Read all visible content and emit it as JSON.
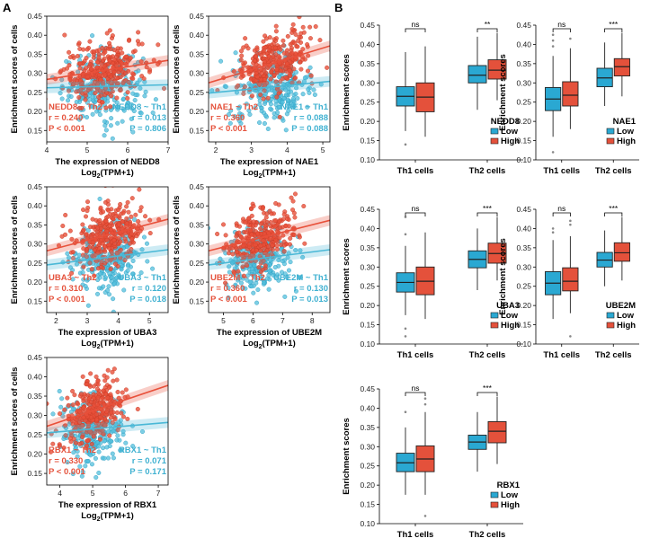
{
  "colors": {
    "th2": "#e8503a",
    "th1": "#4ab8d6",
    "th2_dot": "#e8503a",
    "th1_dot": "#52bfdc",
    "low_box": "#2aa8d2",
    "high_box": "#e4513b",
    "th2_text": "#e5533d",
    "th1_text": "#3fb1d1"
  },
  "panel_labels": {
    "a": "A",
    "b": "B"
  },
  "chart_data": {
    "scatter": [
      {
        "type": "scatter",
        "gene": "NEDD8",
        "xlabel": "The expression of NEDD8",
        "xlabel2_main": "Log",
        "xlabel2_sub": "2",
        "xlabel2_rest": "(TPM+1)",
        "ylabel": "Enrichment scores of cells",
        "xlim": [
          4,
          7
        ],
        "xticks": [
          4,
          5,
          6,
          7
        ],
        "ylim": [
          0.12,
          0.45
        ],
        "yticks": [
          0.15,
          0.2,
          0.25,
          0.3,
          0.35,
          0.4,
          0.45
        ],
        "x_mean": 5.4,
        "x_sd": 0.5,
        "th2_line": [
          0.284,
          0.334
        ],
        "th1_line": [
          0.262,
          0.27
        ],
        "th2_label": "NEDD8 ~ Th2",
        "th2_r": "r = 0.240",
        "th2_p": "P < 0.001",
        "th1_label": "NEDD8 ~ Th1",
        "th1_r": "r = 0.013",
        "th1_p": "P = 0.806"
      },
      {
        "type": "scatter",
        "gene": "NAE1",
        "xlabel": "The expression of NAE1",
        "xlabel2_main": "Log",
        "xlabel2_sub": "2",
        "xlabel2_rest": "(TPM+1)",
        "ylabel": "Enrichment scores of cells",
        "xlim": [
          1.8,
          5.2
        ],
        "xticks": [
          2,
          3,
          4,
          5
        ],
        "ylim": [
          0.12,
          0.45
        ],
        "yticks": [
          0.15,
          0.2,
          0.25,
          0.3,
          0.35,
          0.4,
          0.45
        ],
        "x_mean": 3.6,
        "x_sd": 0.55,
        "th2_line": [
          0.275,
          0.372
        ],
        "th1_line": [
          0.248,
          0.279
        ],
        "th2_label": "NAE1 ~ Th2",
        "th2_r": "r = 0.360",
        "th2_p": "P < 0.001",
        "th1_label": "NAE1 ~ Th1",
        "th1_r": "r = 0.088",
        "th1_p": "P = 0.088"
      },
      {
        "type": "scatter",
        "gene": "UBA3",
        "xlabel": "The expression of UBA3",
        "xlabel2_main": "Log",
        "xlabel2_sub": "2",
        "xlabel2_rest": "(TPM+1)",
        "ylabel": "Enrichment scores of cells",
        "xlim": [
          1.7,
          5.6
        ],
        "xticks": [
          2,
          3,
          4,
          5
        ],
        "ylim": [
          0.12,
          0.45
        ],
        "yticks": [
          0.15,
          0.2,
          0.25,
          0.3,
          0.35,
          0.4,
          0.45
        ],
        "x_mean": 3.7,
        "x_sd": 0.55,
        "th2_line": [
          0.282,
          0.365
        ],
        "th1_line": [
          0.245,
          0.285
        ],
        "th2_label": "UBA3 ~ Th2",
        "th2_r": "r = 0.310",
        "th2_p": "P < 0.001",
        "th1_label": "UBA3 ~ Th1",
        "th1_r": "r = 0.120",
        "th1_p": "P = 0.018"
      },
      {
        "type": "scatter",
        "gene": "UBE2M",
        "xlabel": "The expression of UBE2M",
        "xlabel2_main": "Log",
        "xlabel2_sub": "2",
        "xlabel2_rest": "(TPM+1)",
        "ylabel": "Enrichment scores of cells",
        "xlim": [
          4.5,
          8.6
        ],
        "xticks": [
          5,
          6,
          7,
          8
        ],
        "ylim": [
          0.12,
          0.45
        ],
        "yticks": [
          0.15,
          0.2,
          0.25,
          0.3,
          0.35,
          0.4,
          0.45
        ],
        "x_mean": 6.2,
        "x_sd": 0.6,
        "th2_line": [
          0.282,
          0.362
        ],
        "th1_line": [
          0.245,
          0.285
        ],
        "th2_label": "UBE2M ~ Th2",
        "th2_r": "r = 0.360",
        "th2_p": "P < 0.001",
        "th1_label": "UBE2M ~ Th1",
        "th1_r": "r = 0.130",
        "th1_p": "P = 0.013"
      },
      {
        "type": "scatter",
        "gene": "RBX1",
        "xlabel": "The expression of RBX1",
        "xlabel2_main": "Log",
        "xlabel2_sub": "2",
        "xlabel2_rest": "(TPM+1)",
        "ylabel": "Enrichment scores of cells",
        "xlim": [
          3.6,
          7.3
        ],
        "xticks": [
          4,
          5,
          6,
          7
        ],
        "ylim": [
          0.12,
          0.45
        ],
        "yticks": [
          0.15,
          0.2,
          0.25,
          0.3,
          0.35,
          0.4,
          0.45
        ],
        "x_mean": 5.0,
        "x_sd": 0.45,
        "th2_line": [
          0.272,
          0.378
        ],
        "th1_line": [
          0.255,
          0.282
        ],
        "th2_label": "RBX1 ~ Th2",
        "th2_r": "r = 0.330",
        "th2_p": "P < 0.001",
        "th1_label": "RBX1 ~ Th1",
        "th1_r": "r = 0.071",
        "th1_p": "P = 0.171"
      }
    ],
    "boxplots": [
      {
        "type": "box",
        "gene": "NEDD8",
        "ylabel": "Enrichment scores",
        "categories": [
          "Th1 cells",
          "Th2 cells"
        ],
        "ylim": [
          0.1,
          0.45
        ],
        "yticks": [
          0.1,
          0.15,
          0.2,
          0.25,
          0.3,
          0.35,
          0.4,
          0.45
        ],
        "legend": [
          "Low",
          "High"
        ],
        "sig": [
          "ns",
          "**"
        ],
        "low": [
          {
            "min": 0.175,
            "q1": 0.24,
            "med": 0.265,
            "q3": 0.29,
            "max": 0.38,
            "out": [
              0.14
            ]
          },
          {
            "min": 0.23,
            "q1": 0.3,
            "med": 0.32,
            "q3": 0.345,
            "max": 0.42,
            "out": []
          }
        ],
        "high": [
          {
            "min": 0.16,
            "q1": 0.225,
            "med": 0.263,
            "q3": 0.3,
            "max": 0.395,
            "out": []
          },
          {
            "min": 0.255,
            "q1": 0.31,
            "med": 0.333,
            "q3": 0.36,
            "max": 0.43,
            "out": []
          }
        ]
      },
      {
        "type": "box",
        "gene": "NAE1",
        "ylabel": "Enrichment scores",
        "categories": [
          "Th1 cells",
          "Th2 cells"
        ],
        "ylim": [
          0.1,
          0.45
        ],
        "yticks": [
          0.1,
          0.15,
          0.2,
          0.25,
          0.3,
          0.35,
          0.4,
          0.45
        ],
        "legend": [
          "Low",
          "High"
        ],
        "sig": [
          "ns",
          "***"
        ],
        "low": [
          {
            "min": 0.16,
            "q1": 0.228,
            "med": 0.258,
            "q3": 0.288,
            "max": 0.37,
            "out": [
              0.12,
              0.395,
              0.41,
              0.425
            ]
          },
          {
            "min": 0.24,
            "q1": 0.29,
            "med": 0.313,
            "q3": 0.338,
            "max": 0.405,
            "out": []
          }
        ],
        "high": [
          {
            "min": 0.18,
            "q1": 0.24,
            "med": 0.268,
            "q3": 0.303,
            "max": 0.39,
            "out": [
              0.415
            ]
          },
          {
            "min": 0.265,
            "q1": 0.318,
            "med": 0.342,
            "q3": 0.363,
            "max": 0.43,
            "out": []
          }
        ]
      },
      {
        "type": "box",
        "gene": "UBA3",
        "ylabel": "Enrichment scores",
        "categories": [
          "Th1 cells",
          "Th2 cells"
        ],
        "ylim": [
          0.1,
          0.45
        ],
        "yticks": [
          0.1,
          0.15,
          0.2,
          0.25,
          0.3,
          0.35,
          0.4,
          0.45
        ],
        "legend": [
          "Low",
          "High"
        ],
        "sig": [
          "ns",
          "***"
        ],
        "low": [
          {
            "min": 0.175,
            "q1": 0.235,
            "med": 0.26,
            "q3": 0.285,
            "max": 0.355,
            "out": [
              0.12,
              0.14,
              0.385,
              0.43
            ]
          },
          {
            "min": 0.24,
            "q1": 0.298,
            "med": 0.32,
            "q3": 0.342,
            "max": 0.4,
            "out": []
          }
        ],
        "high": [
          {
            "min": 0.165,
            "q1": 0.228,
            "med": 0.263,
            "q3": 0.3,
            "max": 0.39,
            "out": []
          },
          {
            "min": 0.265,
            "q1": 0.31,
            "med": 0.335,
            "q3": 0.362,
            "max": 0.43,
            "out": []
          }
        ]
      },
      {
        "type": "box",
        "gene": "UBE2M",
        "ylabel": "Enrichment scores",
        "categories": [
          "Th1 cells",
          "Th2 cells"
        ],
        "ylim": [
          0.1,
          0.45
        ],
        "yticks": [
          0.1,
          0.15,
          0.2,
          0.25,
          0.3,
          0.35,
          0.4,
          0.45
        ],
        "legend": [
          "Low",
          "High"
        ],
        "sig": [
          "ns",
          "***"
        ],
        "low": [
          {
            "min": 0.165,
            "q1": 0.228,
            "med": 0.258,
            "q3": 0.288,
            "max": 0.37,
            "out": [
              0.39,
              0.4
            ]
          },
          {
            "min": 0.25,
            "q1": 0.3,
            "med": 0.318,
            "q3": 0.338,
            "max": 0.395,
            "out": []
          }
        ],
        "high": [
          {
            "min": 0.18,
            "q1": 0.238,
            "med": 0.263,
            "q3": 0.298,
            "max": 0.38,
            "out": [
              0.12,
              0.41,
              0.42
            ]
          },
          {
            "min": 0.265,
            "q1": 0.315,
            "med": 0.337,
            "q3": 0.363,
            "max": 0.43,
            "out": []
          }
        ]
      },
      {
        "type": "box",
        "gene": "RBX1",
        "ylabel": "Enrichment scores",
        "categories": [
          "Th1 cells",
          "Th2 cells"
        ],
        "ylim": [
          0.1,
          0.45
        ],
        "yticks": [
          0.1,
          0.15,
          0.2,
          0.25,
          0.3,
          0.35,
          0.4,
          0.45
        ],
        "legend": [
          "Low",
          "High"
        ],
        "sig": [
          "ns",
          "***"
        ],
        "low": [
          {
            "min": 0.175,
            "q1": 0.235,
            "med": 0.258,
            "q3": 0.283,
            "max": 0.35,
            "out": [
              0.39
            ]
          },
          {
            "min": 0.235,
            "q1": 0.293,
            "med": 0.312,
            "q3": 0.33,
            "max": 0.39,
            "out": []
          }
        ],
        "high": [
          {
            "min": 0.175,
            "q1": 0.235,
            "med": 0.268,
            "q3": 0.302,
            "max": 0.39,
            "out": [
              0.12,
              0.41,
              0.425
            ]
          },
          {
            "min": 0.255,
            "q1": 0.31,
            "med": 0.34,
            "q3": 0.365,
            "max": 0.43,
            "out": []
          }
        ]
      }
    ]
  }
}
